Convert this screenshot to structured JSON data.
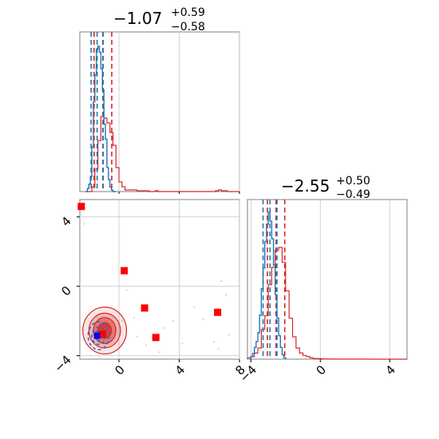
{
  "chart_data": {
    "type": "corner",
    "colors": {
      "red": "#d62728",
      "blue": "#1f77b4",
      "marker": "#ff0000",
      "marker_blue": "#0000ff",
      "grid": "#c8c8c8",
      "frame": "#808080"
    },
    "param1": {
      "title": {
        "main": "−1.07",
        "plus": "+0.59",
        "minus": "−0.58"
      },
      "xlim": [
        -2.6,
        8
      ],
      "quantiles_red": [
        -1.65,
        -1.07,
        -0.48
      ],
      "quantiles_blue": [
        -1.85,
        -1.45,
        -1.05
      ],
      "hist_red": {
        "bins": [
          -2.2,
          -2.0,
          -1.8,
          -1.6,
          -1.4,
          -1.2,
          -1.0,
          -0.8,
          -0.6,
          -0.4,
          -0.2,
          0.0,
          0.2,
          0.4,
          0.6,
          0.8,
          1.0,
          1.2,
          1.4,
          1.6,
          1.8,
          2.0,
          2.2,
          2.4,
          2.6,
          2.8,
          3.0,
          3.2,
          3.4,
          3.6,
          3.8,
          4.0,
          4.2,
          4.4,
          4.6,
          4.8,
          5.0,
          5.2,
          5.4,
          5.6,
          5.8,
          6.0,
          6.2,
          6.4,
          6.6,
          6.8,
          7.0,
          7.2,
          7.4,
          7.6,
          7.8,
          8.0
        ],
        "counts": [
          0,
          0,
          3,
          14,
          32,
          47,
          46,
          43,
          37,
          29,
          15,
          6,
          3,
          1,
          1,
          1,
          1,
          0.5,
          0.5,
          0.5,
          0.5,
          0,
          0,
          0.5,
          0,
          0,
          0,
          0,
          0,
          0,
          0,
          0,
          0,
          0,
          0,
          0,
          0,
          0,
          0,
          0,
          0,
          0,
          0,
          0.5,
          1,
          0.5,
          0.5,
          0,
          0,
          0,
          0
        ]
      },
      "hist_blue": {
        "bins": [
          -2.2,
          -2.1,
          -2.0,
          -1.9,
          -1.8,
          -1.7,
          -1.6,
          -1.5,
          -1.4,
          -1.3,
          -1.2,
          -1.1,
          -1.0,
          -0.9,
          -0.8,
          -0.7,
          -0.6,
          -0.5,
          -0.4,
          -0.3,
          -0.2
        ],
        "counts": [
          0,
          2,
          5,
          10,
          30,
          60,
          78,
          95,
          97,
          93,
          82,
          68,
          45,
          35,
          16,
          8,
          3,
          1,
          0,
          0
        ]
      }
    },
    "param2": {
      "title": {
        "main": "−2.55",
        "plus": "+0.50",
        "minus": "−0.49"
      },
      "xlim": [
        -4.2,
        5
      ],
      "quantiles_red": [
        -3.05,
        -2.55,
        -2.05
      ],
      "quantiles_blue": [
        -3.3,
        -2.9,
        -2.5
      ],
      "hist_red": {
        "bins": [
          -4.2,
          -4.0,
          -3.8,
          -3.6,
          -3.4,
          -3.2,
          -3.0,
          -2.8,
          -2.6,
          -2.4,
          -2.2,
          -2.0,
          -1.8,
          -1.6,
          -1.4,
          -1.2,
          -1.0,
          -0.8,
          -0.6,
          -0.4,
          -0.2,
          0.0,
          0.2,
          0.4,
          0.6,
          0.8,
          1.0,
          1.2,
          1.4,
          1.6,
          1.8,
          2.0,
          2.2,
          2.4,
          2.6,
          2.8,
          3.0,
          3.2,
          3.4,
          3.6,
          3.8,
          4.0,
          4.2,
          4.4,
          4.6,
          4.8,
          5.0
        ],
        "counts": [
          1,
          2,
          5,
          9,
          24,
          35,
          60,
          74,
          88,
          90,
          78,
          55,
          33,
          18,
          9,
          5,
          3,
          2,
          1,
          0.5,
          0.5,
          0.3,
          0.2,
          0.2,
          0.2,
          0.1,
          0.1,
          0.1,
          0.1,
          0.1,
          0.1,
          0.1,
          0.1,
          0.1,
          0.1,
          0,
          0,
          0,
          0,
          0,
          0,
          0,
          0,
          0,
          0,
          0
        ]
      },
      "hist_blue": {
        "bins": [
          -4.0,
          -3.9,
          -3.8,
          -3.7,
          -3.6,
          -3.5,
          -3.4,
          -3.3,
          -3.2,
          -3.1,
          -3.0,
          -2.9,
          -2.8,
          -2.7,
          -2.6,
          -2.5,
          -2.4,
          -2.3,
          -2.2,
          -2.1,
          -2.0
        ],
        "counts": [
          2,
          4,
          8,
          12,
          18,
          30,
          48,
          62,
          80,
          92,
          100,
          94,
          82,
          64,
          44,
          28,
          16,
          8,
          3,
          1
        ]
      }
    },
    "scatter": {
      "xlim": [
        -2.6,
        8
      ],
      "ylim": [
        -4.2,
        5
      ],
      "xticks": [
        "0",
        "4",
        "8"
      ],
      "xtick_values": [
        0,
        4,
        8
      ],
      "yticks": [
        "−4",
        "0",
        "4"
      ],
      "ytick_values": [
        -4,
        0,
        4
      ],
      "red_markers": [
        [
          -2.5,
          4.6
        ],
        [
          0.35,
          0.9
        ],
        [
          1.7,
          -1.25
        ],
        [
          2.45,
          -2.95
        ],
        [
          6.55,
          -1.5
        ],
        [
          -1.1,
          -2.75
        ]
      ],
      "blue_marker": [
        -1.45,
        -2.85
      ],
      "contour_center": [
        -0.95,
        -2.55
      ],
      "contour_levels": [
        [
          1.45,
          1.35
        ],
        [
          1.05,
          1.0
        ],
        [
          0.75,
          0.75
        ],
        [
          0.45,
          0.45
        ]
      ],
      "contour_blue_center": [
        -1.35,
        -2.85
      ],
      "contour_blue_levels": [
        [
          0.7,
          0.8
        ],
        [
          0.45,
          0.5
        ],
        [
          0.25,
          0.3
        ]
      ],
      "faint_points": [
        [
          0.5,
          -0.2
        ],
        [
          0.2,
          -2.0
        ],
        [
          1.2,
          -2.9
        ],
        [
          1.8,
          -3.4
        ],
        [
          2.2,
          -3.0
        ],
        [
          2.7,
          -3.8
        ],
        [
          3.0,
          -2.4
        ],
        [
          5.6,
          -1.9
        ],
        [
          6.3,
          -3.2
        ],
        [
          6.6,
          -3.6
        ],
        [
          7.1,
          -0.5
        ],
        [
          6.8,
          0.3
        ],
        [
          7.3,
          -2.8
        ],
        [
          -2.3,
          3.6
        ],
        [
          3.6,
          -2.0
        ],
        [
          4.2,
          -3.3
        ],
        [
          5.0,
          -1.2
        ],
        [
          1.0,
          -1.8
        ]
      ]
    },
    "diag_xticks": [
      "−4",
      "0",
      "4"
    ],
    "diag_xtick_values": [
      -4,
      0,
      4
    ]
  }
}
